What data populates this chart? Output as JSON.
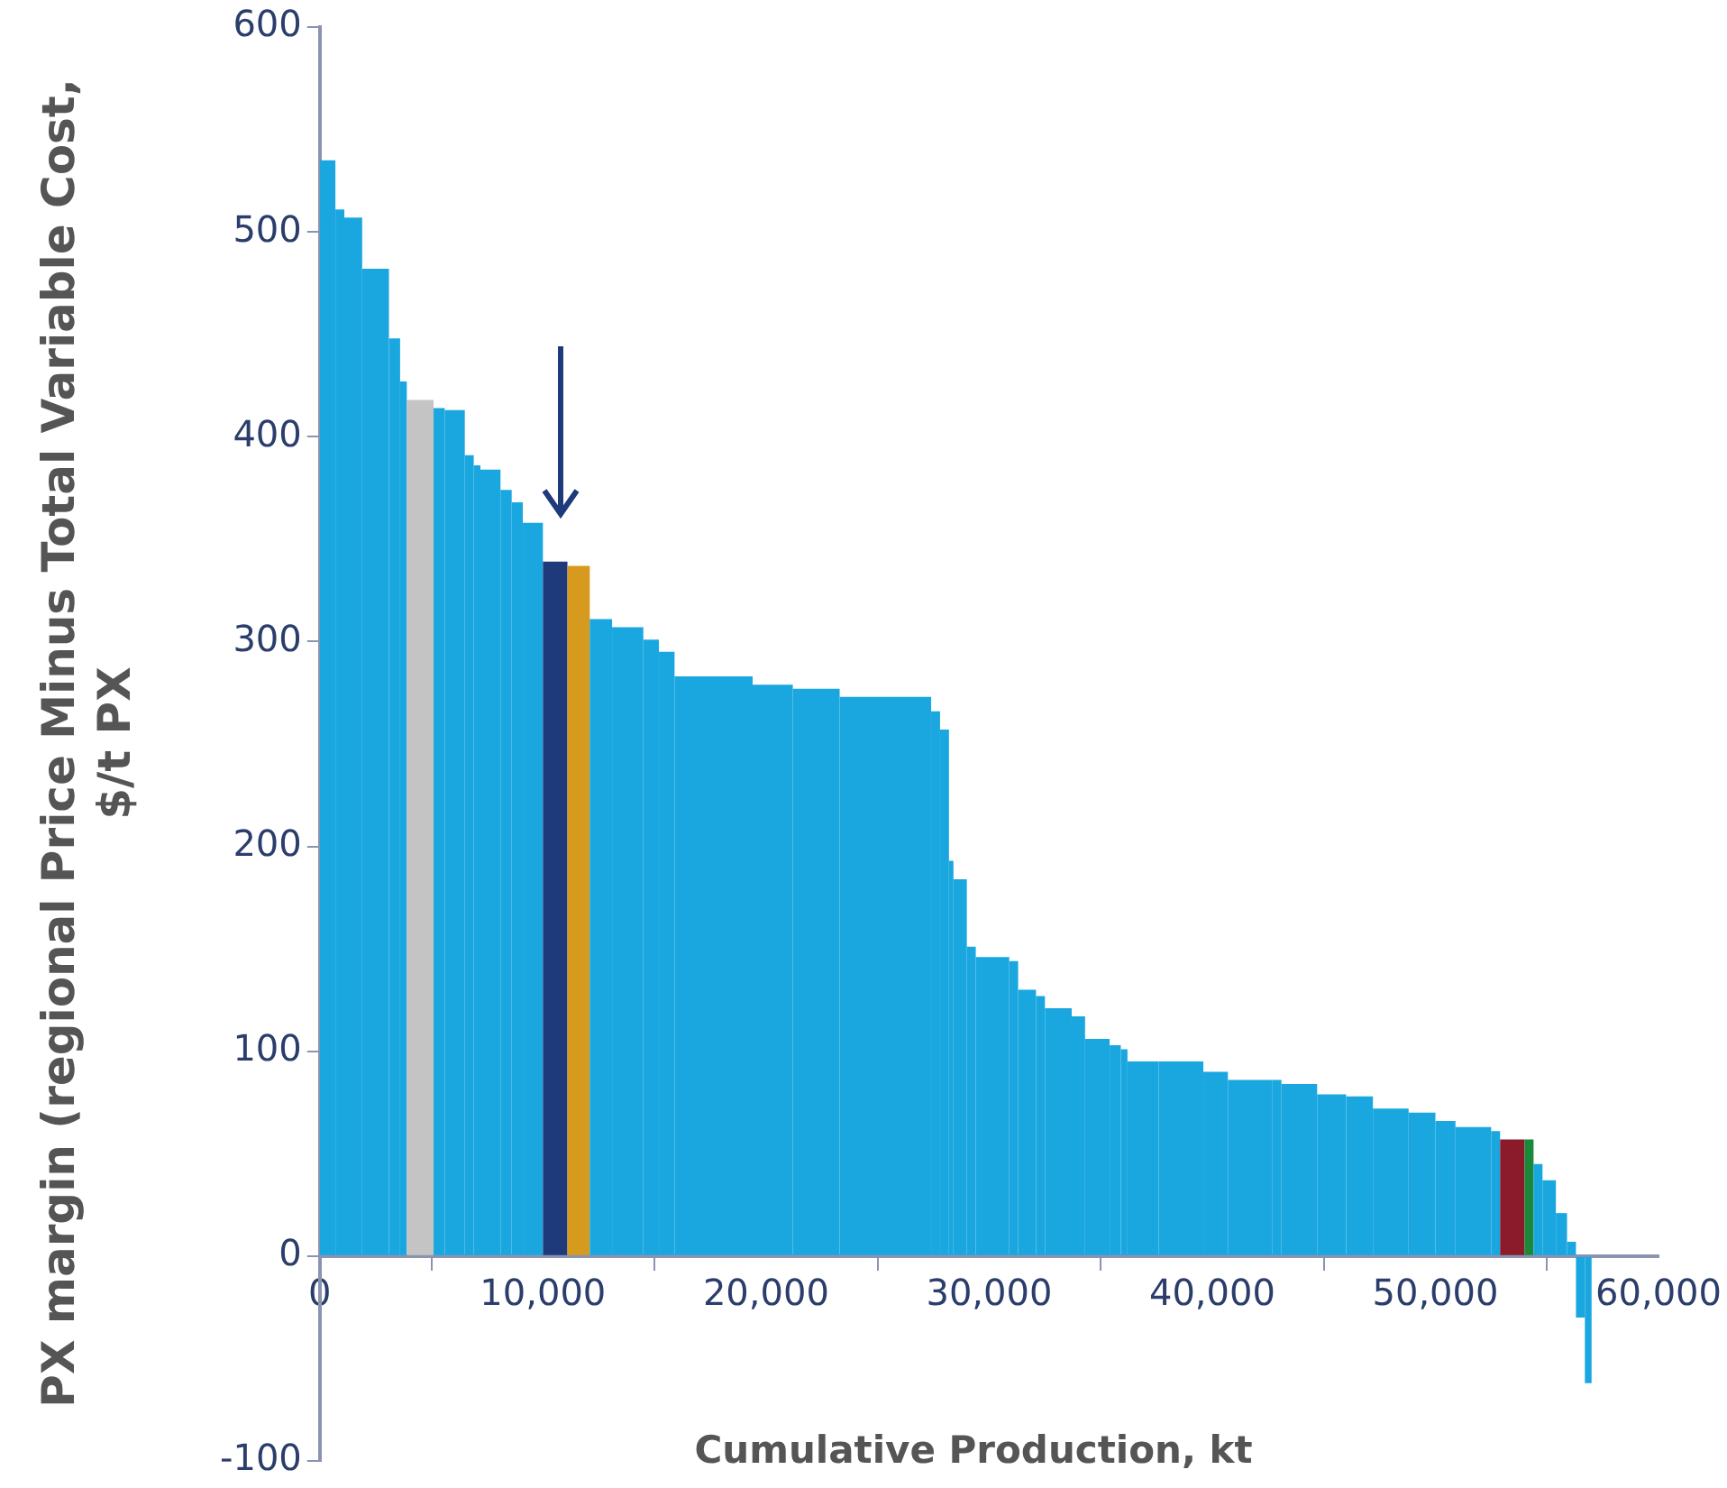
{
  "chart_data": {
    "type": "histogram",
    "xlabel": "Cumulative Production, kt",
    "ylabel": "PX margin (regional Price Minus Total Variable Cost, $/t PX",
    "bins": [
      0,
      700,
      1100,
      1900,
      3100,
      3600,
      3900,
      5100,
      5600,
      6500,
      6900,
      7200,
      8100,
      8600,
      9100,
      10000,
      11100,
      12100,
      13100,
      14500,
      15200,
      15900,
      19400,
      21200,
      23300,
      27400,
      27800,
      28200,
      28400,
      29000,
      29400,
      30900,
      31300,
      32100,
      32500,
      33700,
      34300,
      35400,
      35900,
      36200,
      37600,
      39600,
      40700,
      42700,
      43100,
      44700,
      46000,
      47200,
      48800,
      50000,
      50900,
      52500,
      52900,
      54000,
      54400,
      54800,
      55400,
      55900,
      56300,
      56700,
      57000
    ],
    "values": [
      535,
      511,
      507,
      482,
      448,
      427,
      418,
      414,
      413,
      391,
      386,
      384,
      374,
      368,
      358,
      339,
      337,
      311,
      307,
      301,
      295,
      283,
      279,
      277,
      273,
      266,
      257,
      193,
      184,
      151,
      146,
      144,
      130,
      127,
      121,
      117,
      106,
      103,
      101,
      95,
      95,
      90,
      86,
      86,
      84,
      79,
      78,
      72,
      70,
      66,
      63,
      61,
      57,
      57,
      45,
      37,
      21,
      7,
      -30,
      -62
    ],
    "colors": [
      "#1aa7e0",
      "#1aa7e0",
      "#1aa7e0",
      "#1aa7e0",
      "#1aa7e0",
      "#1aa7e0",
      "#c4c4c4",
      "#1aa7e0",
      "#1aa7e0",
      "#1aa7e0",
      "#1aa7e0",
      "#1aa7e0",
      "#1aa7e0",
      "#1aa7e0",
      "#1aa7e0",
      "#1f3a7a",
      "#d69a1e",
      "#1aa7e0",
      "#1aa7e0",
      "#1aa7e0",
      "#1aa7e0",
      "#1aa7e0",
      "#1aa7e0",
      "#1aa7e0",
      "#1aa7e0",
      "#1aa7e0",
      "#1aa7e0",
      "#1aa7e0",
      "#1aa7e0",
      "#1aa7e0",
      "#1aa7e0",
      "#1aa7e0",
      "#1aa7e0",
      "#1aa7e0",
      "#1aa7e0",
      "#1aa7e0",
      "#1aa7e0",
      "#1aa7e0",
      "#1aa7e0",
      "#1aa7e0",
      "#1aa7e0",
      "#1aa7e0",
      "#1aa7e0",
      "#1aa7e0",
      "#1aa7e0",
      "#1aa7e0",
      "#1aa7e0",
      "#1aa7e0",
      "#1aa7e0",
      "#1aa7e0",
      "#1aa7e0",
      "#1aa7e0",
      "#8b1a2b",
      "#1a8a3a",
      "#1aa7e0",
      "#1aa7e0",
      "#1aa7e0",
      "#1aa7e0",
      "#1aa7e0",
      "#1aa7e0"
    ],
    "xlim": [
      0,
      60000
    ],
    "xticks": [
      0,
      {
        "value": 10000,
        "label": "10,000"
      },
      {
        "value": 20000,
        "label": "20,000"
      },
      {
        "value": 30000,
        "label": "30,000"
      },
      {
        "value": 40000,
        "label": "40,000"
      },
      {
        "value": 50000,
        "label": "50,000"
      },
      {
        "value": 60000,
        "label": "60,000"
      }
    ],
    "ylim": [
      -100,
      600
    ],
    "yticks": [
      -100,
      0,
      100,
      200,
      300,
      400,
      500,
      600
    ],
    "grid": false
  }
}
